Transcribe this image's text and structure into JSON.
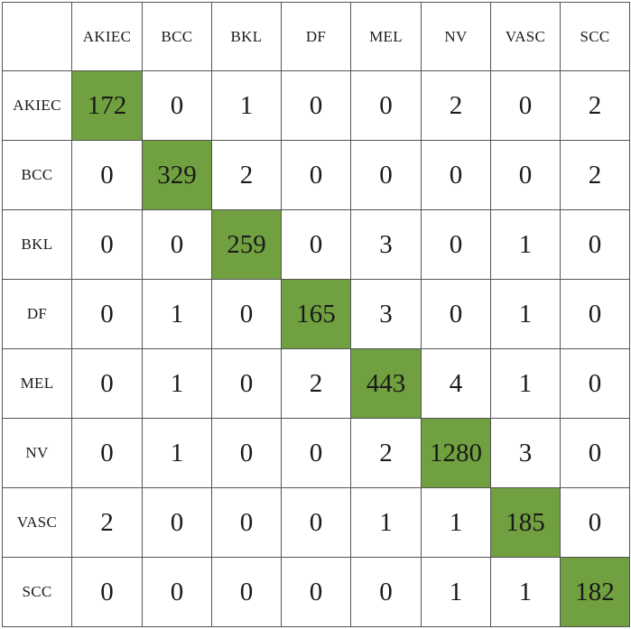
{
  "chart_data": {
    "type": "table",
    "title": "",
    "labels": [
      "AKIEC",
      "BCC",
      "BKL",
      "DF",
      "MEL",
      "NV",
      "VASC",
      "SCC"
    ],
    "matrix": [
      [
        172,
        0,
        1,
        0,
        0,
        2,
        0,
        2
      ],
      [
        0,
        329,
        2,
        0,
        0,
        0,
        0,
        2
      ],
      [
        0,
        0,
        259,
        0,
        3,
        0,
        1,
        0
      ],
      [
        0,
        1,
        0,
        165,
        3,
        0,
        1,
        0
      ],
      [
        0,
        1,
        0,
        2,
        443,
        4,
        1,
        0
      ],
      [
        0,
        1,
        0,
        0,
        2,
        1280,
        3,
        0
      ],
      [
        2,
        0,
        0,
        0,
        1,
        1,
        185,
        0
      ],
      [
        0,
        0,
        0,
        0,
        0,
        1,
        1,
        182
      ]
    ],
    "highlight": "diagonal",
    "highlight_color": "#70a03f",
    "text_color": "#1a1a1a",
    "border_color": "#555555"
  }
}
